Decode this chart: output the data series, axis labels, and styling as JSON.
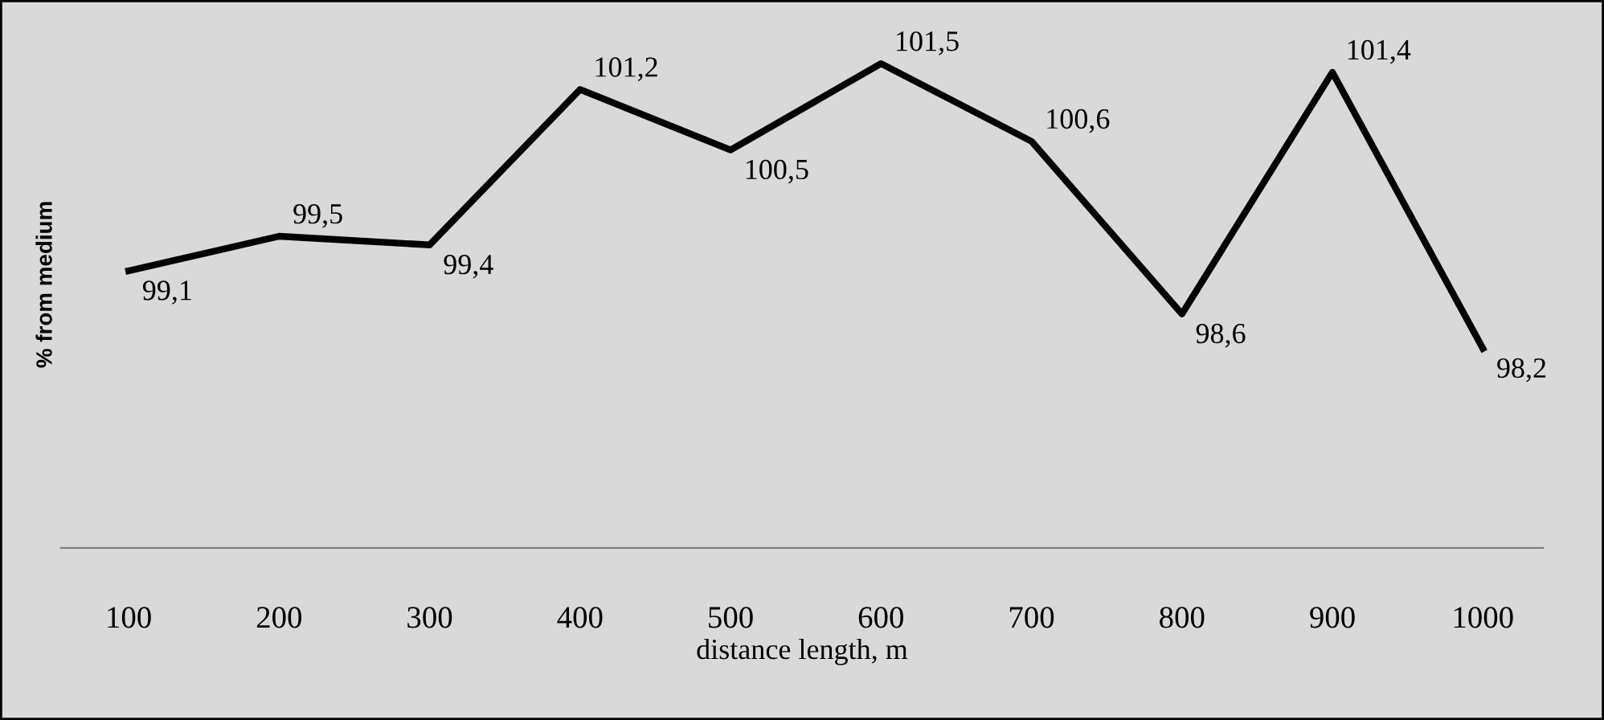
{
  "chart_data": {
    "type": "line",
    "xlabel": "distance length, m",
    "ylabel": "% from medium",
    "categories": [
      "100",
      "200",
      "300",
      "400",
      "500",
      "600",
      "700",
      "800",
      "900",
      "1000"
    ],
    "series": [
      {
        "color": "#000000",
        "values": [
          99.1,
          99.5,
          99.4,
          101.2,
          100.5,
          101.5,
          100.6,
          98.6,
          101.4,
          98.2
        ],
        "value_labels": [
          "99,1",
          "99,5",
          "99,4",
          "101,2",
          "100,5",
          "101,5",
          "100,6",
          "98,6",
          "101,4",
          "98,2"
        ]
      }
    ],
    "tick_labels": "x",
    "grid": false,
    "legend": false,
    "marker": "none",
    "line_style": "solid"
  }
}
